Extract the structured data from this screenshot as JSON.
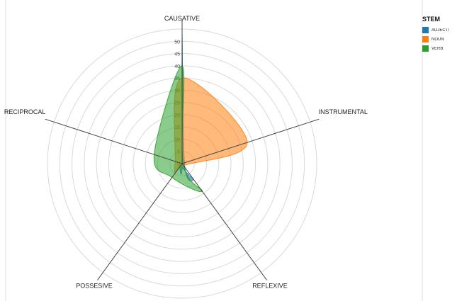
{
  "chart_data": {
    "type": "radar",
    "axes": [
      "CAUSATIVE",
      "INSTRUMENTAL",
      "REFLEXIVE",
      "POSSESIVE",
      "RECIPROCAL"
    ],
    "ticks": [
      "0",
      "5",
      "10",
      "15",
      "20",
      "25",
      "30",
      "35",
      "40",
      "45",
      "50"
    ],
    "rmax": 55,
    "legend_title": "STEM",
    "legend_position": "top-right",
    "grid": true,
    "series": [
      {
        "name": "ADJECTIVE",
        "legend_label": "ADJECT/",
        "color": "#1f77b4",
        "values": [
          53,
          1,
          8,
          1,
          0
        ]
      },
      {
        "name": "NOUN",
        "legend_label": "NOUN",
        "color": "#ff7f0e",
        "values": [
          35,
          28,
          1,
          4,
          3
        ]
      },
      {
        "name": "VERB",
        "legend_label": "VERB",
        "color": "#2ca02c",
        "values": [
          40,
          0.5,
          14,
          7,
          12
        ]
      }
    ]
  }
}
